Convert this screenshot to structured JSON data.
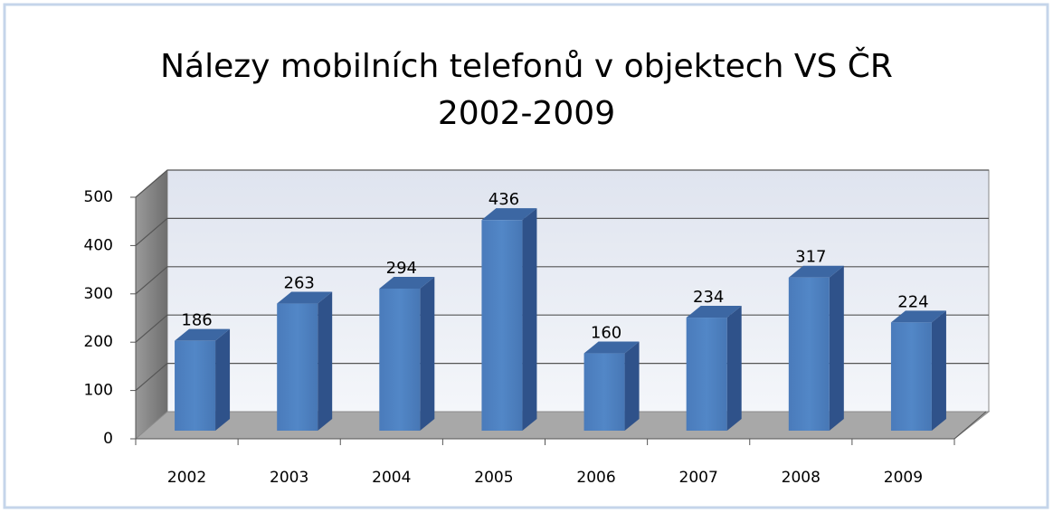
{
  "chart_data": {
    "type": "bar3d",
    "title": [
      "Nálezy mobilních telefonů v objektech VS ČR",
      "2002-2009"
    ],
    "categories": [
      "2002",
      "2003",
      "2004",
      "2005",
      "2006",
      "2007",
      "2008",
      "2009"
    ],
    "values": [
      186,
      263,
      294,
      436,
      160,
      234,
      317,
      224
    ],
    "color": "#4f81bd",
    "ylim": [
      0,
      500
    ],
    "yticks": [
      0,
      100,
      200,
      300,
      400,
      500
    ],
    "grid": true,
    "data_labels": true
  }
}
